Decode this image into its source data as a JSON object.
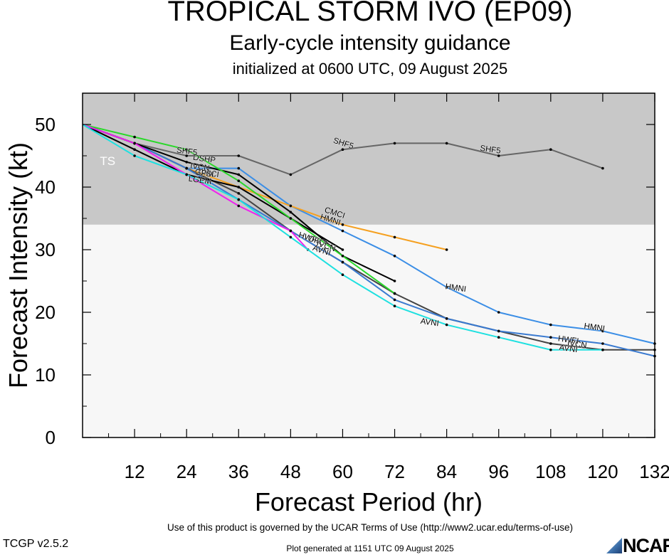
{
  "header": {
    "title": "TROPICAL STORM IVO (EP09)",
    "subtitle": "Early-cycle intensity guidance",
    "init": "initialized at 0600 UTC, 09 August 2025"
  },
  "footer": {
    "terms": "Use of this product is governed by the UCAR Terms of Use (http://www2.ucar.edu/terms-of-use)",
    "version": "TCGP v2.5.2",
    "generated": "Plot generated at 1151 UTC   09 August 2025",
    "logo": "NCAR"
  },
  "chart_data": {
    "type": "line",
    "xlabel": "Forecast Period (hr)",
    "ylabel": "Forecast Intensity (kt)",
    "xlim": [
      0,
      132
    ],
    "ylim": [
      0,
      55
    ],
    "xticks": [
      "12",
      "24",
      "36",
      "48",
      "60",
      "72",
      "84",
      "96",
      "108",
      "120",
      "132"
    ],
    "yticks": [
      "0",
      "10",
      "20",
      "30",
      "40",
      "50"
    ],
    "band": {
      "label": "TS",
      "range": [
        34,
        55
      ],
      "color": "#c8c8c8"
    },
    "grid": false,
    "series": [
      {
        "name": "SHF5",
        "color": "#666666",
        "labels": [
          {
            "x": 24,
            "y": 45.3
          },
          {
            "x": 60,
            "y": 46.6
          },
          {
            "x": 94,
            "y": 45.6
          }
        ],
        "points": [
          [
            0,
            50
          ],
          [
            12,
            47
          ],
          [
            24,
            45
          ],
          [
            36,
            45
          ],
          [
            48,
            42
          ],
          [
            60,
            46
          ],
          [
            72,
            47
          ],
          [
            84,
            47
          ],
          [
            96,
            45
          ],
          [
            108,
            46
          ],
          [
            120,
            43
          ]
        ]
      },
      {
        "name": "HMNI",
        "color": "#3b8ee6",
        "labels": [
          {
            "x": 57,
            "y": 34.4
          },
          {
            "x": 86,
            "y": 23.5
          },
          {
            "x": 118,
            "y": 17.2
          }
        ],
        "points": [
          [
            0,
            50
          ],
          [
            12,
            47
          ],
          [
            24,
            43
          ],
          [
            36,
            43
          ],
          [
            48,
            37
          ],
          [
            60,
            33
          ],
          [
            72,
            29
          ],
          [
            84,
            24
          ],
          [
            96,
            20
          ],
          [
            108,
            18
          ],
          [
            120,
            17
          ],
          [
            132,
            15
          ]
        ]
      },
      {
        "name": "CMCI",
        "color": "#f5a020",
        "labels": [
          {
            "x": 58,
            "y": 35.5
          },
          {
            "x": 29,
            "y": 41.8
          }
        ],
        "points": [
          [
            0,
            50
          ],
          [
            12,
            47
          ],
          [
            24,
            43
          ],
          [
            36,
            40
          ],
          [
            48,
            37
          ],
          [
            60,
            34
          ],
          [
            72,
            32
          ],
          [
            84,
            30
          ]
        ]
      },
      {
        "name": "HWFI",
        "color": "#444444",
        "labels": [
          {
            "x": 52,
            "y": 31.5
          },
          {
            "x": 112,
            "y": 15.2
          }
        ],
        "points": [
          [
            0,
            50
          ],
          [
            12,
            47
          ],
          [
            24,
            43
          ],
          [
            36,
            39
          ],
          [
            48,
            33
          ],
          [
            60,
            28
          ],
          [
            72,
            23
          ],
          [
            84,
            19
          ],
          [
            96,
            17
          ],
          [
            108,
            15
          ],
          [
            120,
            14
          ],
          [
            132,
            14
          ]
        ]
      },
      {
        "name": "IVCN",
        "color": "#3a7ad0",
        "labels": [
          {
            "x": 56,
            "y": 30.2
          },
          {
            "x": 114,
            "y": 14.5
          },
          {
            "x": 27,
            "y": 42.8
          }
        ],
        "points": [
          [
            0,
            50
          ],
          [
            12,
            47
          ],
          [
            24,
            43
          ],
          [
            36,
            38
          ],
          [
            48,
            33
          ],
          [
            60,
            28
          ],
          [
            72,
            22
          ],
          [
            84,
            19
          ],
          [
            96,
            17
          ],
          [
            108,
            16
          ],
          [
            120,
            15
          ],
          [
            132,
            13
          ]
        ]
      },
      {
        "name": "DSHP",
        "color": "#000000",
        "labels": [
          {
            "x": 28,
            "y": 44.1
          }
        ],
        "points": [
          [
            0,
            50
          ],
          [
            12,
            47
          ],
          [
            24,
            44
          ],
          [
            36,
            42
          ],
          [
            48,
            36
          ],
          [
            60,
            29
          ],
          [
            72,
            25
          ]
        ]
      },
      {
        "name": "LGEM",
        "color": "#000000",
        "labels": [
          {
            "x": 27,
            "y": 40.7
          }
        ],
        "points": [
          [
            0,
            50
          ],
          [
            12,
            46
          ],
          [
            24,
            42
          ],
          [
            36,
            40
          ],
          [
            48,
            35
          ],
          [
            60,
            30
          ]
        ]
      },
      {
        "name": "OFCI",
        "color": "#2ad82a",
        "labels": [
          {
            "x": 54,
            "y": 31.0
          }
        ],
        "points": [
          [
            0,
            50
          ],
          [
            12,
            48
          ],
          [
            24,
            46
          ],
          [
            36,
            41
          ],
          [
            48,
            35
          ],
          [
            60,
            29
          ],
          [
            72,
            23
          ]
        ]
      },
      {
        "name": "GFSI",
        "color": "#ee22ee",
        "labels": [
          {
            "x": 28,
            "y": 41.8
          }
        ],
        "points": [
          [
            0,
            50
          ],
          [
            12,
            47
          ],
          [
            24,
            42
          ],
          [
            36,
            37
          ],
          [
            48,
            33
          ],
          [
            52,
            30
          ]
        ]
      },
      {
        "name": "AVNI",
        "color": "#1ee0e0",
        "labels": [
          {
            "x": 55,
            "y": 29.5
          },
          {
            "x": 80,
            "y": 18.0
          },
          {
            "x": 112,
            "y": 13.8
          }
        ],
        "points": [
          [
            0,
            50
          ],
          [
            12,
            45
          ],
          [
            24,
            42
          ],
          [
            36,
            38
          ],
          [
            48,
            32
          ],
          [
            60,
            26
          ],
          [
            72,
            21
          ],
          [
            84,
            18
          ],
          [
            96,
            16
          ],
          [
            108,
            14
          ],
          [
            120,
            14
          ]
        ]
      }
    ]
  }
}
